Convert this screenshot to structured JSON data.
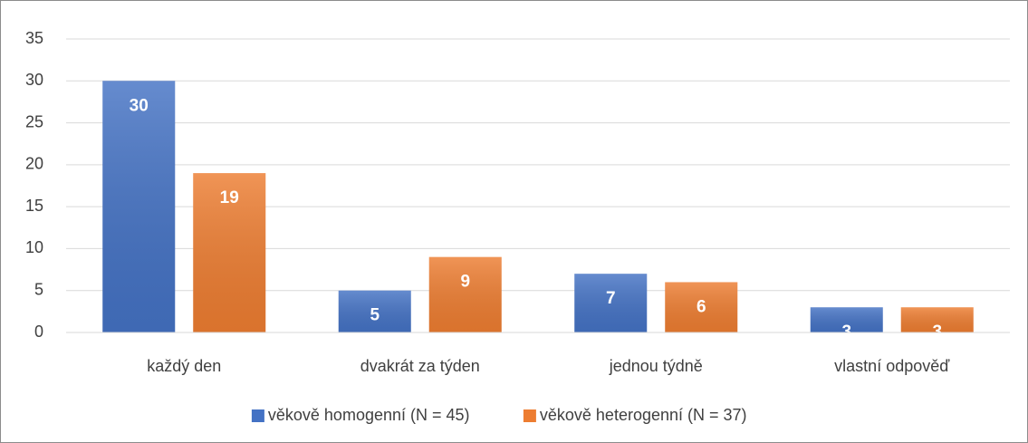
{
  "chart_data": {
    "type": "bar",
    "categories": [
      "každý den",
      "dvakrát za týden",
      "jednou týdně",
      "vlastní odpověď"
    ],
    "series": [
      {
        "name": "věkově homogenní (N = 45)",
        "color": "#4472c4",
        "values": [
          30,
          5,
          7,
          3
        ]
      },
      {
        "name": "věkově heterogenní (N = 37)",
        "color": "#ed7d31",
        "values": [
          19,
          9,
          6,
          3
        ]
      }
    ],
    "ylim": [
      0,
      35
    ],
    "yticks": [
      0,
      5,
      10,
      15,
      20,
      25,
      30,
      35
    ],
    "grid": true,
    "legend": "bottom"
  }
}
